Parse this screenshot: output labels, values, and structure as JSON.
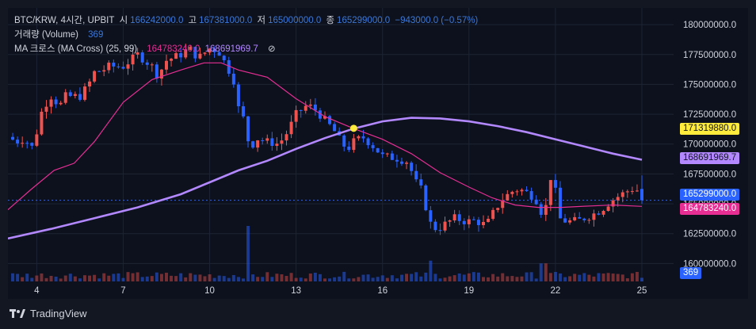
{
  "header": {
    "symbol": "BTC/KRW, 4시간, UPBIT",
    "open_label": "시",
    "open": "166242000.0",
    "high_label": "고",
    "high": "167381000.0",
    "low_label": "저",
    "low": "165000000.0",
    "close_label": "종",
    "close": "165299000.0",
    "change": "−943000.0 (−0.57%)"
  },
  "volume_legend": {
    "name": "거래량 (Volume)",
    "value": "369"
  },
  "ma_legend": {
    "name": "MA 크로스 (MA Cross) (25, 99)",
    "fast": "164783240.0",
    "slow": "168691969.7",
    "eye": "⊘"
  },
  "price_tags": {
    "cross": "171319880.0",
    "slow_ma": "168691969.7",
    "last": "165299000.0",
    "fast_ma": "164783240.0",
    "volume": "369"
  },
  "footer": {
    "brand": "TradingView"
  },
  "colors": {
    "up": "#ef5350",
    "down": "#2962ff",
    "fast_ma": "#e62e93",
    "slow_ma": "#b388ff",
    "cross": "#ffeb3b"
  },
  "chart_data": {
    "type": "candlestick",
    "y_ticks": [
      "180000000.0",
      "177500000.0",
      "175000000.0",
      "172500000.0",
      "170000000.0",
      "167500000.0",
      "165000000.0",
      "162500000.0",
      "160000000.0"
    ],
    "y_tick_values": [
      180000000,
      177500000,
      175000000,
      172500000,
      170000000,
      167500000,
      165000000,
      162500000,
      160000000
    ],
    "ylim": [
      158500000,
      181400000
    ],
    "x_ticks": [
      "4",
      "7",
      "10",
      "13",
      "16",
      "19",
      "22",
      "25"
    ],
    "x_tick_days": [
      4,
      7,
      10,
      13,
      16,
      19,
      22,
      25
    ],
    "x_range_days": [
      3.0,
      26.1
    ],
    "close_path": [
      {
        "d": 3.0,
        "p": 170600000
      },
      {
        "d": 3.3,
        "p": 170200000
      },
      {
        "d": 3.6,
        "p": 170500000
      },
      {
        "d": 3.8,
        "p": 169500000
      },
      {
        "d": 4.0,
        "p": 171000000
      },
      {
        "d": 4.2,
        "p": 173000000
      },
      {
        "d": 4.5,
        "p": 174000000
      },
      {
        "d": 4.8,
        "p": 173200000
      },
      {
        "d": 5.0,
        "p": 174000000
      },
      {
        "d": 5.5,
        "p": 174000000
      },
      {
        "d": 5.8,
        "p": 175000000
      },
      {
        "d": 6.0,
        "p": 176000000
      },
      {
        "d": 6.3,
        "p": 176200000
      },
      {
        "d": 6.5,
        "p": 176500000
      },
      {
        "d": 7.0,
        "p": 176500000
      },
      {
        "d": 7.5,
        "p": 177500000
      },
      {
        "d": 8.0,
        "p": 176500000
      },
      {
        "d": 8.2,
        "p": 175700000
      },
      {
        "d": 8.5,
        "p": 177000000
      },
      {
        "d": 9.0,
        "p": 177500000
      },
      {
        "d": 9.3,
        "p": 178000000
      },
      {
        "d": 9.6,
        "p": 177200000
      },
      {
        "d": 10.0,
        "p": 178000000
      },
      {
        "d": 10.3,
        "p": 177800000
      },
      {
        "d": 10.6,
        "p": 176500000
      },
      {
        "d": 10.9,
        "p": 175000000
      },
      {
        "d": 11.0,
        "p": 173000000
      },
      {
        "d": 11.2,
        "p": 172000000
      },
      {
        "d": 11.4,
        "p": 169500000
      },
      {
        "d": 11.6,
        "p": 170500000
      },
      {
        "d": 12.0,
        "p": 170200000
      },
      {
        "d": 12.4,
        "p": 170000000
      },
      {
        "d": 12.7,
        "p": 171000000
      },
      {
        "d": 13.0,
        "p": 172500000
      },
      {
        "d": 13.4,
        "p": 173300000
      },
      {
        "d": 13.7,
        "p": 172800000
      },
      {
        "d": 14.0,
        "p": 172000000
      },
      {
        "d": 14.3,
        "p": 171200000
      },
      {
        "d": 14.6,
        "p": 170000000
      },
      {
        "d": 14.8,
        "p": 169600000
      },
      {
        "d": 15.0,
        "p": 170200000
      },
      {
        "d": 15.3,
        "p": 170600000
      },
      {
        "d": 15.6,
        "p": 170000000
      },
      {
        "d": 16.0,
        "p": 169000000
      },
      {
        "d": 16.5,
        "p": 168800000
      },
      {
        "d": 16.9,
        "p": 168500000
      },
      {
        "d": 17.1,
        "p": 167000000
      },
      {
        "d": 17.4,
        "p": 166000000
      },
      {
        "d": 17.6,
        "p": 163500000
      },
      {
        "d": 17.9,
        "p": 162800000
      },
      {
        "d": 18.1,
        "p": 163200000
      },
      {
        "d": 18.5,
        "p": 163800000
      },
      {
        "d": 18.9,
        "p": 163500000
      },
      {
        "d": 19.2,
        "p": 163600000
      },
      {
        "d": 19.6,
        "p": 163200000
      },
      {
        "d": 19.9,
        "p": 164500000
      },
      {
        "d": 20.2,
        "p": 165500000
      },
      {
        "d": 20.6,
        "p": 166200000
      },
      {
        "d": 20.9,
        "p": 166100000
      },
      {
        "d": 21.3,
        "p": 165500000
      },
      {
        "d": 21.6,
        "p": 163800000
      },
      {
        "d": 21.9,
        "p": 168200000
      },
      {
        "d": 22.1,
        "p": 163800000
      },
      {
        "d": 22.4,
        "p": 163500000
      },
      {
        "d": 22.8,
        "p": 163600000
      },
      {
        "d": 23.2,
        "p": 164000000
      },
      {
        "d": 23.6,
        "p": 164500000
      },
      {
        "d": 23.9,
        "p": 165200000
      },
      {
        "d": 24.3,
        "p": 165800000
      },
      {
        "d": 24.6,
        "p": 166200000
      },
      {
        "d": 24.8,
        "p": 166300000
      },
      {
        "d": 25.0,
        "p": 165299000
      }
    ],
    "ma_fast_path": [
      {
        "d": 3.0,
        "p": 164500000
      },
      {
        "d": 3.8,
        "p": 166200000
      },
      {
        "d": 4.6,
        "p": 167800000
      },
      {
        "d": 5.3,
        "p": 168400000
      },
      {
        "d": 6.0,
        "p": 170200000
      },
      {
        "d": 7.0,
        "p": 173500000
      },
      {
        "d": 8.0,
        "p": 175400000
      },
      {
        "d": 9.0,
        "p": 176200000
      },
      {
        "d": 9.8,
        "p": 176800000
      },
      {
        "d": 10.4,
        "p": 176800000
      },
      {
        "d": 11.0,
        "p": 176200000
      },
      {
        "d": 12.0,
        "p": 175600000
      },
      {
        "d": 13.0,
        "p": 173800000
      },
      {
        "d": 14.0,
        "p": 172300000
      },
      {
        "d": 15.0,
        "p": 171300000
      },
      {
        "d": 16.0,
        "p": 170400000
      },
      {
        "d": 17.0,
        "p": 169200000
      },
      {
        "d": 18.0,
        "p": 167600000
      },
      {
        "d": 19.0,
        "p": 166400000
      },
      {
        "d": 19.8,
        "p": 165500000
      },
      {
        "d": 20.6,
        "p": 164900000
      },
      {
        "d": 21.4,
        "p": 164700000
      },
      {
        "d": 22.2,
        "p": 164700000
      },
      {
        "d": 23.0,
        "p": 164800000
      },
      {
        "d": 24.0,
        "p": 164900000
      },
      {
        "d": 25.0,
        "p": 164783240
      }
    ],
    "ma_slow_path": [
      {
        "d": 3.0,
        "p": 162100000
      },
      {
        "d": 4.5,
        "p": 162900000
      },
      {
        "d": 6.0,
        "p": 163800000
      },
      {
        "d": 7.5,
        "p": 164700000
      },
      {
        "d": 9.0,
        "p": 165800000
      },
      {
        "d": 10.0,
        "p": 166800000
      },
      {
        "d": 11.0,
        "p": 167800000
      },
      {
        "d": 12.0,
        "p": 168600000
      },
      {
        "d": 13.0,
        "p": 169600000
      },
      {
        "d": 14.0,
        "p": 170500000
      },
      {
        "d": 15.0,
        "p": 171300000
      },
      {
        "d": 16.0,
        "p": 171900000
      },
      {
        "d": 17.0,
        "p": 172200000
      },
      {
        "d": 18.0,
        "p": 172150000
      },
      {
        "d": 19.0,
        "p": 171900000
      },
      {
        "d": 20.0,
        "p": 171500000
      },
      {
        "d": 21.0,
        "p": 171000000
      },
      {
        "d": 22.0,
        "p": 170400000
      },
      {
        "d": 23.0,
        "p": 169800000
      },
      {
        "d": 24.0,
        "p": 169200000
      },
      {
        "d": 25.0,
        "p": 168691970
      }
    ],
    "cross_point": {
      "d": 15.0,
      "p": 171319880
    },
    "last_price": 165299000,
    "volume_spikes": [
      {
        "d": 11.3,
        "v": 8
      },
      {
        "d": 17.7,
        "v": 3
      },
      {
        "d": 21.6,
        "v": 2.6
      }
    ]
  }
}
